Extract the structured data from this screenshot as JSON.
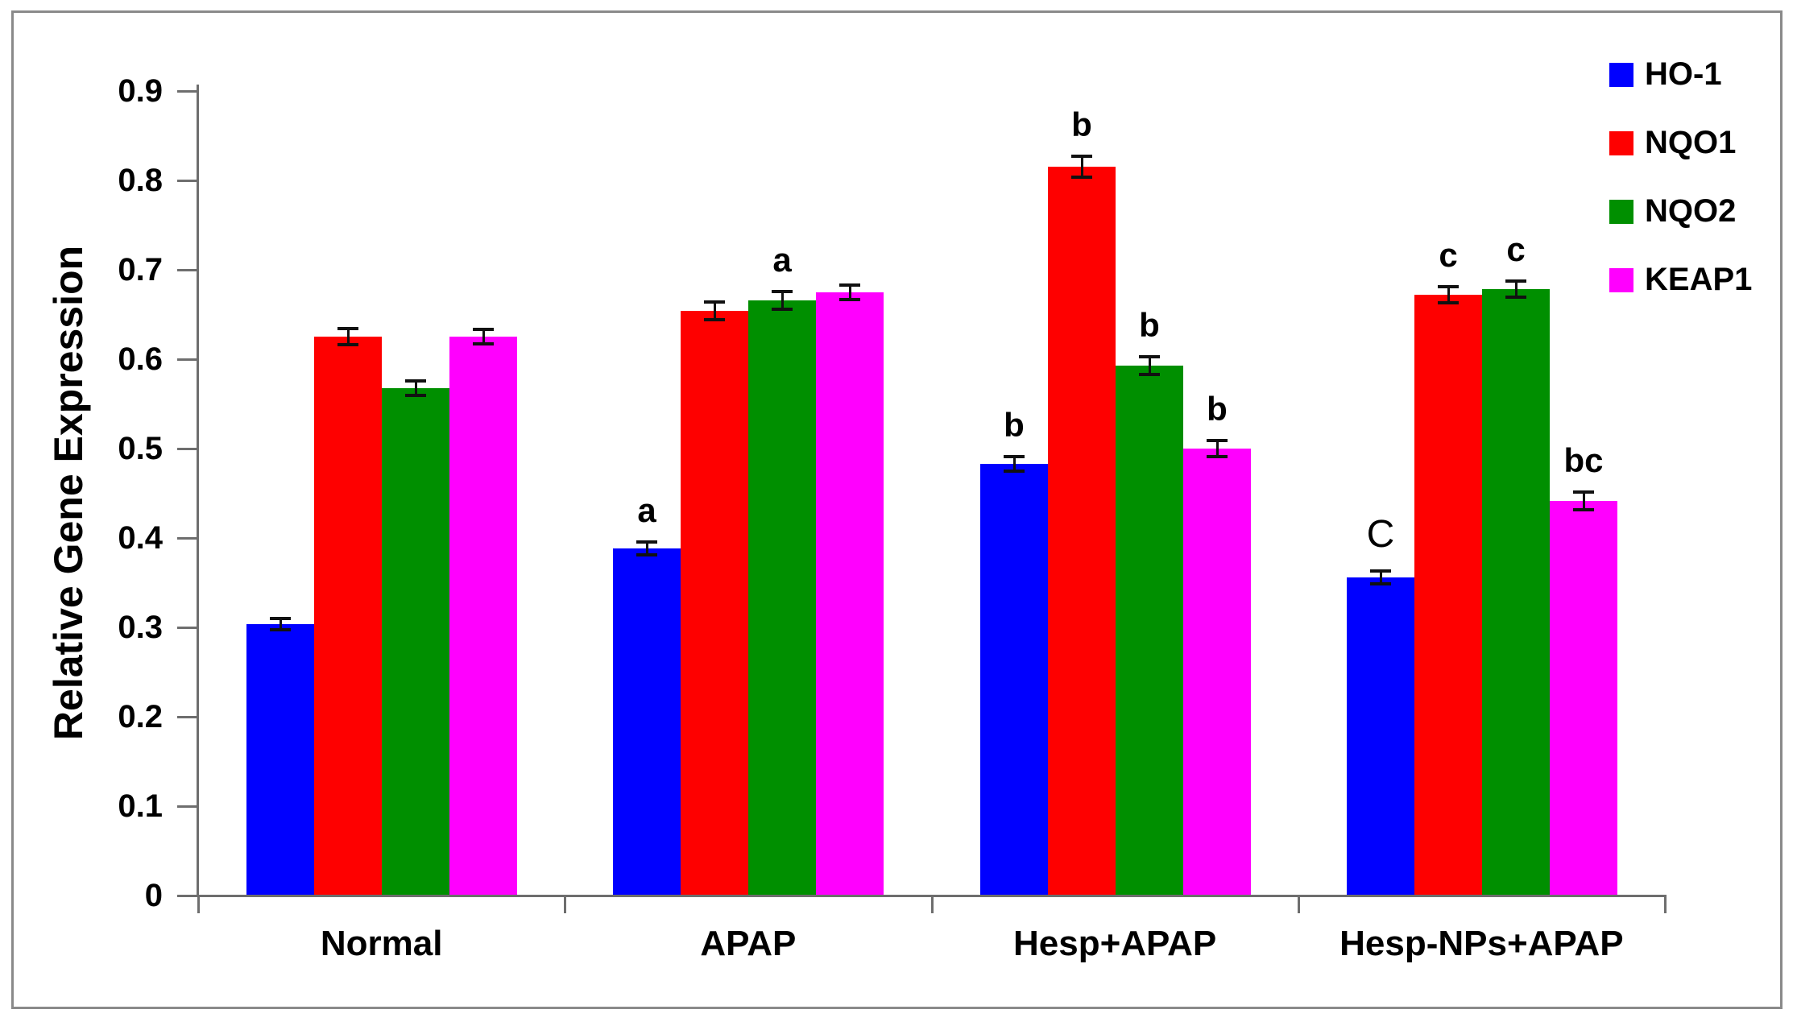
{
  "figure": {
    "background": "#ffffff",
    "frame_color": "#8a8a8a",
    "axis_color": "#6e6e6e",
    "text_color": "#000000",
    "error_bar_color": "#111111"
  },
  "chart_data": {
    "type": "bar",
    "title": "",
    "xlabel": "",
    "ylabel": "Relative Gene Expression",
    "ylim": [
      0,
      0.9
    ],
    "ytick_step": 0.1,
    "ytick_labels": [
      "0",
      "0.1",
      "0.2",
      "0.3",
      "0.4",
      "0.5",
      "0.6",
      "0.7",
      "0.8",
      "0.9"
    ],
    "grid": false,
    "legend_position": "top-right",
    "categories": [
      "Normal",
      "APAP",
      "Hesp+APAP",
      "Hesp-NPs+APAP"
    ],
    "series": [
      {
        "name": "HO-1",
        "color": "#0000ff",
        "values": [
          0.304,
          0.388,
          0.483,
          0.356
        ],
        "errors": [
          0.005,
          0.006,
          0.007,
          0.006
        ],
        "annotations": [
          null,
          {
            "text": "a"
          },
          {
            "text": "b"
          },
          {
            "text": "C",
            "weight": "normal"
          }
        ]
      },
      {
        "name": "NQO1",
        "color": "#fe0000",
        "values": [
          0.625,
          0.654,
          0.815,
          0.672
        ],
        "errors": [
          0.008,
          0.009,
          0.011,
          0.008
        ],
        "annotations": [
          null,
          null,
          {
            "text": "b"
          },
          {
            "text": "c"
          }
        ]
      },
      {
        "name": "NQO2",
        "color": "#008f00",
        "values": [
          0.568,
          0.666,
          0.593,
          0.678
        ],
        "errors": [
          0.007,
          0.009,
          0.009,
          0.008
        ],
        "annotations": [
          null,
          {
            "text": "a"
          },
          {
            "text": "b"
          },
          {
            "text": "c"
          }
        ]
      },
      {
        "name": "KEAP1",
        "color": "#ff00fe",
        "values": [
          0.625,
          0.675,
          0.5,
          0.441
        ],
        "errors": [
          0.007,
          0.007,
          0.008,
          0.009
        ],
        "annotations": [
          null,
          null,
          {
            "text": "b"
          },
          {
            "text": "bc"
          }
        ]
      }
    ]
  }
}
